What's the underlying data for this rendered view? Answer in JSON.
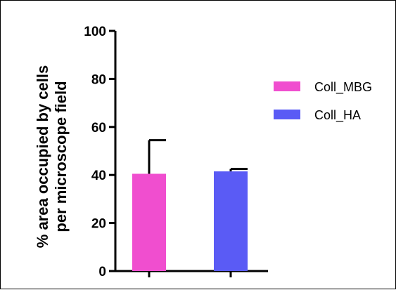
{
  "chart_data": {
    "type": "bar",
    "title": "",
    "xlabel": "",
    "ylabel_lines": [
      "% area occupied by cells",
      "per microscope field"
    ],
    "ylim": [
      0,
      100
    ],
    "yticks": [
      0,
      20,
      40,
      60,
      80,
      100
    ],
    "categories": [
      "Coll_MBG",
      "Coll_HA"
    ],
    "values": [
      40.5,
      41.5
    ],
    "error_upper": [
      54.5,
      42.5
    ],
    "colors": [
      "#f04ecf",
      "#5a5bf5"
    ],
    "show_x_tick_labels": false,
    "grid": false,
    "legend": {
      "placement": "right",
      "entries": [
        {
          "label": "Coll_MBG",
          "color": "#f04ecf"
        },
        {
          "label": "Coll_HA",
          "color": "#5a5bf5"
        }
      ]
    }
  }
}
